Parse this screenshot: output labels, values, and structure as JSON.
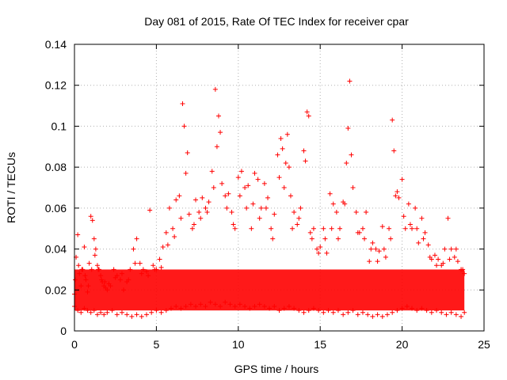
{
  "chart_data": {
    "type": "scatter",
    "title": "Day 081 of 2015, Rate Of TEC Index for receiver cpar",
    "xlabel": "GPS time / hours",
    "ylabel": "ROTI / TECUs",
    "xlim": [
      0,
      25
    ],
    "ylim": [
      0,
      0.14
    ],
    "x_ticks": [
      0,
      5,
      10,
      15,
      20,
      25
    ],
    "y_ticks": [
      0,
      0.02,
      0.04,
      0.06,
      0.08,
      0.1,
      0.12,
      0.14
    ],
    "x_tick_labels": [
      "0",
      "5",
      "10",
      "15",
      "20",
      "25"
    ],
    "y_tick_labels": [
      "0",
      "0.02",
      "0.04",
      "0.06",
      "0.08",
      "0.1",
      "0.12",
      "0.14"
    ],
    "grid": true,
    "marker": "+",
    "color": "#ff0000",
    "series": [
      {
        "x": [
          0.0,
          0.1,
          0.2,
          0.3,
          0.4,
          0.5,
          0.6,
          0.7,
          0.8,
          0.9,
          1.0,
          1.1,
          1.2,
          1.3,
          1.4,
          1.5,
          1.6,
          1.7,
          1.8,
          1.9,
          2.0,
          2.2,
          2.4,
          2.6,
          2.8,
          3.0,
          3.2,
          3.4,
          3.6,
          3.8,
          4.0,
          4.2,
          4.4,
          4.6,
          4.8,
          5.0,
          5.2,
          5.4,
          5.6,
          5.8,
          6.0,
          6.2,
          6.4,
          6.6,
          6.8,
          7.0,
          7.2,
          7.4,
          7.6,
          7.8,
          8.0,
          8.2,
          8.4,
          8.6,
          8.8,
          9.0,
          9.2,
          9.4,
          9.6,
          9.8,
          10.0,
          10.2,
          10.4,
          10.6,
          10.8,
          11.0,
          11.2,
          11.4,
          11.6,
          11.8,
          12.0,
          12.2,
          12.4,
          12.6,
          12.8,
          13.0,
          13.2,
          13.4,
          13.6,
          13.8,
          14.0,
          14.2,
          14.4,
          14.6,
          14.8,
          15.0,
          15.2,
          15.4,
          15.6,
          15.8,
          16.0,
          16.2,
          16.4,
          16.6,
          16.8,
          17.0,
          17.2,
          17.4,
          17.6,
          17.8,
          18.0,
          18.2,
          18.4,
          18.6,
          18.8,
          19.0,
          19.2,
          19.4,
          19.6,
          19.8,
          20.0,
          20.2,
          20.4,
          20.6,
          20.8,
          21.0,
          21.2,
          21.4,
          21.6,
          21.8,
          22.0,
          22.2,
          22.4,
          22.6,
          22.8,
          23.0,
          23.2,
          23.4,
          23.6,
          23.8
        ],
        "y": [
          0.018,
          0.036,
          0.047,
          0.028,
          0.022,
          0.03,
          0.041,
          0.025,
          0.019,
          0.033,
          0.056,
          0.054,
          0.045,
          0.04,
          0.032,
          0.03,
          0.027,
          0.024,
          0.022,
          0.021,
          0.02,
          0.022,
          0.03,
          0.027,
          0.025,
          0.02,
          0.024,
          0.03,
          0.04,
          0.045,
          0.033,
          0.03,
          0.029,
          0.059,
          0.032,
          0.03,
          0.035,
          0.041,
          0.048,
          0.06,
          0.05,
          0.064,
          0.066,
          0.111,
          0.077,
          0.057,
          0.05,
          0.064,
          0.058,
          0.065,
          0.06,
          0.063,
          0.078,
          0.118,
          0.105,
          0.072,
          0.066,
          0.067,
          0.058,
          0.05,
          0.075,
          0.078,
          0.07,
          0.071,
          0.05,
          0.077,
          0.074,
          0.06,
          0.072,
          0.065,
          0.05,
          0.057,
          0.086,
          0.094,
          0.07,
          0.096,
          0.066,
          0.058,
          0.052,
          0.06,
          0.088,
          0.107,
          0.048,
          0.05,
          0.04,
          0.041,
          0.05,
          0.038,
          0.067,
          0.062,
          0.058,
          0.05,
          0.063,
          0.082,
          0.122,
          0.07,
          0.058,
          0.048,
          0.05,
          0.058,
          0.034,
          0.043,
          0.04,
          0.039,
          0.051,
          0.036,
          0.05,
          0.103,
          0.066,
          0.065,
          0.074,
          0.05,
          0.062,
          0.05,
          0.06,
          0.043,
          0.055,
          0.048,
          0.042,
          0.035,
          0.037,
          0.035,
          0.032,
          0.04,
          0.055,
          0.04,
          0.036,
          0.034,
          0.03,
          0.028
        ]
      },
      {
        "x": [
          0.05,
          0.25,
          0.45,
          0.65,
          0.85,
          1.05,
          1.25,
          1.45,
          1.65,
          1.85,
          2.1,
          2.5,
          2.9,
          3.3,
          3.7,
          4.1,
          4.5,
          4.9,
          5.3,
          5.7,
          6.1,
          6.5,
          6.7,
          6.9,
          7.3,
          7.7,
          8.1,
          8.5,
          8.7,
          8.9,
          9.3,
          9.7,
          10.1,
          10.5,
          10.9,
          11.3,
          11.7,
          12.1,
          12.5,
          12.7,
          12.9,
          13.1,
          13.3,
          13.7,
          14.1,
          14.3,
          14.5,
          14.9,
          15.3,
          15.7,
          16.1,
          16.5,
          16.7,
          16.9,
          17.3,
          17.7,
          18.1,
          18.5,
          18.9,
          19.3,
          19.5,
          19.7,
          20.1,
          20.5,
          20.9,
          21.3,
          21.7,
          22.1,
          22.5,
          22.9,
          23.3,
          23.7
        ],
        "y": [
          0.025,
          0.032,
          0.03,
          0.027,
          0.022,
          0.03,
          0.037,
          0.03,
          0.025,
          0.024,
          0.023,
          0.026,
          0.028,
          0.025,
          0.033,
          0.028,
          0.027,
          0.03,
          0.031,
          0.042,
          0.046,
          0.055,
          0.1,
          0.087,
          0.052,
          0.055,
          0.058,
          0.07,
          0.09,
          0.097,
          0.06,
          0.052,
          0.066,
          0.06,
          0.062,
          0.055,
          0.06,
          0.045,
          0.075,
          0.089,
          0.082,
          0.08,
          0.05,
          0.055,
          0.083,
          0.105,
          0.045,
          0.038,
          0.045,
          0.05,
          0.045,
          0.062,
          0.099,
          0.086,
          0.048,
          0.045,
          0.04,
          0.034,
          0.04,
          0.045,
          0.088,
          0.068,
          0.056,
          0.052,
          0.05,
          0.045,
          0.036,
          0.032,
          0.033,
          0.035,
          0.04,
          0.03
        ]
      },
      {
        "x": [
          0.0,
          0.2,
          0.4,
          0.6,
          0.8,
          1.0,
          1.2,
          1.4,
          1.6,
          1.8,
          2.0,
          2.3,
          2.6,
          2.9,
          3.2,
          3.5,
          3.8,
          4.1,
          4.4,
          4.7,
          5.0,
          5.3,
          5.6,
          5.9,
          6.2,
          6.5,
          6.8,
          7.1,
          7.4,
          7.7,
          8.0,
          8.3,
          8.6,
          8.9,
          9.2,
          9.5,
          9.8,
          10.1,
          10.4,
          10.7,
          11.0,
          11.3,
          11.6,
          11.9,
          12.2,
          12.5,
          12.8,
          13.1,
          13.4,
          13.7,
          14.0,
          14.3,
          14.6,
          14.9,
          15.2,
          15.5,
          15.8,
          16.1,
          16.4,
          16.7,
          17.0,
          17.3,
          17.6,
          17.9,
          18.2,
          18.5,
          18.8,
          19.1,
          19.4,
          19.7,
          20.0,
          20.3,
          20.6,
          20.9,
          21.2,
          21.5,
          21.8,
          22.1,
          22.4,
          22.7,
          23.0,
          23.3,
          23.6,
          23.8
        ],
        "y": [
          0.012,
          0.01,
          0.009,
          0.011,
          0.01,
          0.009,
          0.01,
          0.008,
          0.009,
          0.008,
          0.009,
          0.01,
          0.008,
          0.009,
          0.008,
          0.007,
          0.008,
          0.007,
          0.008,
          0.009,
          0.01,
          0.009,
          0.01,
          0.011,
          0.012,
          0.011,
          0.012,
          0.013,
          0.012,
          0.013,
          0.012,
          0.014,
          0.013,
          0.012,
          0.014,
          0.013,
          0.012,
          0.013,
          0.012,
          0.011,
          0.012,
          0.013,
          0.012,
          0.011,
          0.012,
          0.01,
          0.011,
          0.012,
          0.011,
          0.01,
          0.009,
          0.01,
          0.011,
          0.01,
          0.009,
          0.01,
          0.009,
          0.01,
          0.008,
          0.009,
          0.01,
          0.008,
          0.009,
          0.008,
          0.007,
          0.008,
          0.007,
          0.008,
          0.009,
          0.01,
          0.011,
          0.012,
          0.011,
          0.01,
          0.011,
          0.01,
          0.009,
          0.01,
          0.009,
          0.008,
          0.009,
          0.008,
          0.007,
          0.009
        ]
      }
    ]
  }
}
